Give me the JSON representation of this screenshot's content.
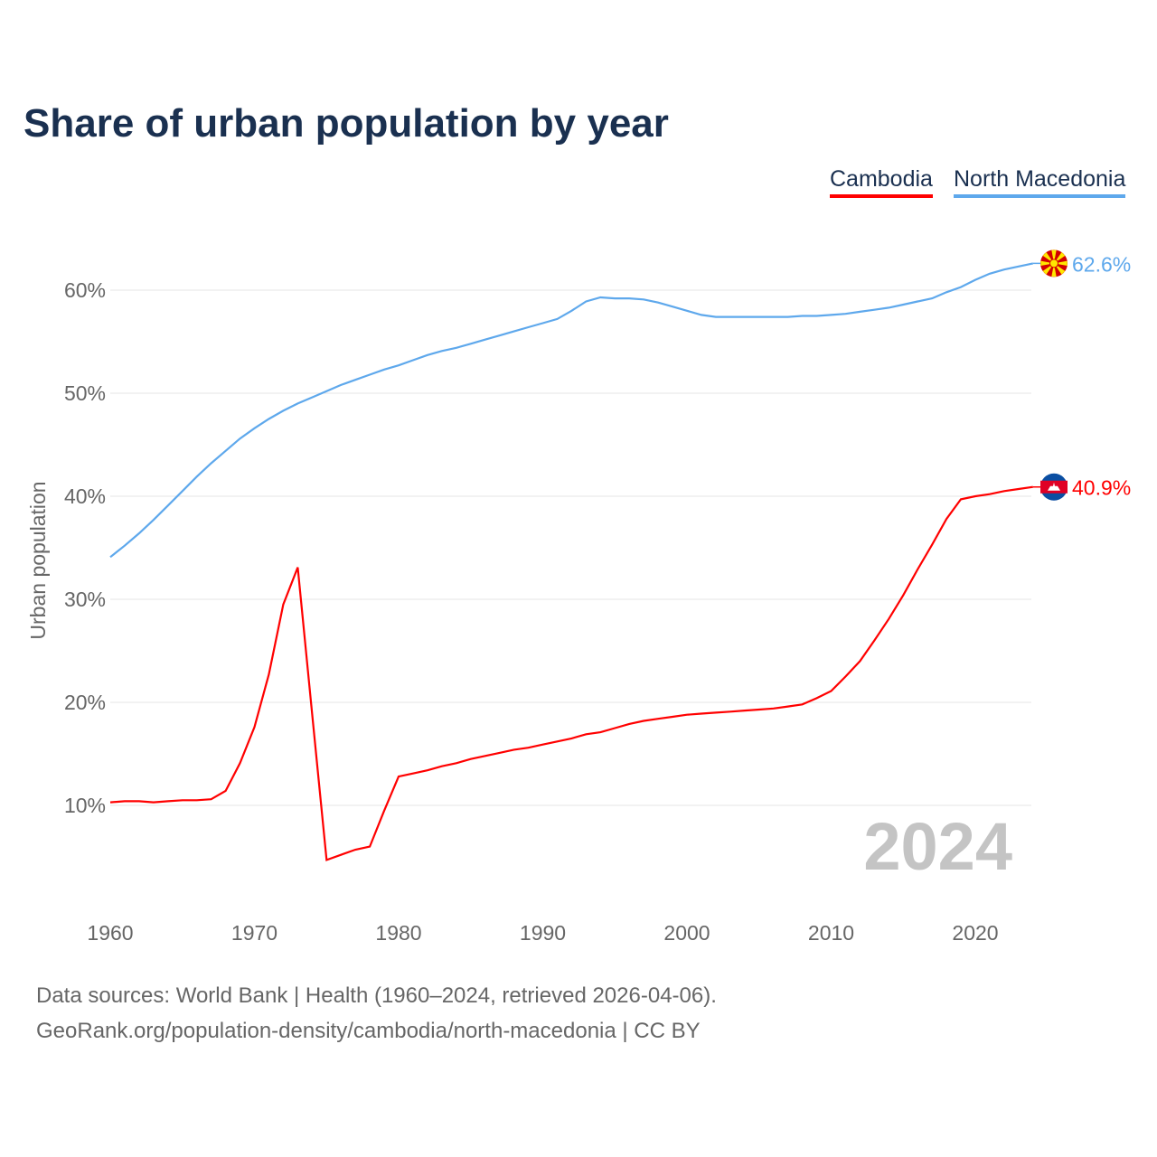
{
  "chart_data": {
    "type": "line",
    "title": "Share of urban population by year",
    "xlabel": "",
    "ylabel": "Urban population",
    "xlim": [
      1960,
      2024
    ],
    "ylim": [
      0,
      65
    ],
    "yticks": [
      10,
      20,
      30,
      40,
      50,
      60
    ],
    "ytick_labels": [
      "10%",
      "20%",
      "30%",
      "40%",
      "50%",
      "60%"
    ],
    "xticks": [
      1960,
      1970,
      1980,
      1990,
      2000,
      2010,
      2020
    ],
    "xtick_labels": [
      "1960",
      "1970",
      "1980",
      "1990",
      "2000",
      "2010",
      "2020"
    ],
    "grid": true,
    "legend_position": "top-right",
    "year_watermark": "2024",
    "series": [
      {
        "name": "Cambodia",
        "color": "#ff0000",
        "end_label": "40.9%",
        "flag": "cambodia-flag-icon",
        "points": [
          [
            1960,
            10.3
          ],
          [
            1961,
            10.4
          ],
          [
            1962,
            10.4
          ],
          [
            1963,
            10.3
          ],
          [
            1964,
            10.4
          ],
          [
            1965,
            10.5
          ],
          [
            1966,
            10.5
          ],
          [
            1967,
            10.6
          ],
          [
            1968,
            11.4
          ],
          [
            1969,
            14.1
          ],
          [
            1970,
            17.6
          ],
          [
            1971,
            22.7
          ],
          [
            1972,
            29.5
          ],
          [
            1973,
            33.1
          ],
          [
            1974,
            18.9
          ],
          [
            1975,
            4.7
          ],
          [
            1976,
            5.2
          ],
          [
            1977,
            5.7
          ],
          [
            1978,
            6.0
          ],
          [
            1979,
            9.5
          ],
          [
            1980,
            12.8
          ],
          [
            1981,
            13.1
          ],
          [
            1982,
            13.4
          ],
          [
            1983,
            13.8
          ],
          [
            1984,
            14.1
          ],
          [
            1985,
            14.5
          ],
          [
            1986,
            14.8
          ],
          [
            1987,
            15.1
          ],
          [
            1988,
            15.4
          ],
          [
            1989,
            15.6
          ],
          [
            1990,
            15.9
          ],
          [
            1991,
            16.2
          ],
          [
            1992,
            16.5
          ],
          [
            1993,
            16.9
          ],
          [
            1994,
            17.1
          ],
          [
            1995,
            17.5
          ],
          [
            1996,
            17.9
          ],
          [
            1997,
            18.2
          ],
          [
            1998,
            18.4
          ],
          [
            1999,
            18.6
          ],
          [
            2000,
            18.8
          ],
          [
            2001,
            18.9
          ],
          [
            2002,
            19.0
          ],
          [
            2003,
            19.1
          ],
          [
            2004,
            19.2
          ],
          [
            2005,
            19.3
          ],
          [
            2006,
            19.4
          ],
          [
            2007,
            19.6
          ],
          [
            2008,
            19.8
          ],
          [
            2009,
            20.4
          ],
          [
            2010,
            21.1
          ],
          [
            2011,
            22.5
          ],
          [
            2012,
            24.0
          ],
          [
            2013,
            26.0
          ],
          [
            2014,
            28.1
          ],
          [
            2015,
            30.4
          ],
          [
            2016,
            32.9
          ],
          [
            2017,
            35.3
          ],
          [
            2018,
            37.8
          ],
          [
            2019,
            39.7
          ],
          [
            2020,
            40.0
          ],
          [
            2021,
            40.2
          ],
          [
            2022,
            40.5
          ],
          [
            2023,
            40.7
          ],
          [
            2024,
            40.9
          ]
        ]
      },
      {
        "name": "North Macedonia",
        "color": "#5ea8ec",
        "end_label": "62.6%",
        "flag": "north-macedonia-flag-icon",
        "points": [
          [
            1960,
            34.1
          ],
          [
            1961,
            35.2
          ],
          [
            1962,
            36.4
          ],
          [
            1963,
            37.7
          ],
          [
            1964,
            39.1
          ],
          [
            1965,
            40.5
          ],
          [
            1966,
            41.9
          ],
          [
            1967,
            43.2
          ],
          [
            1968,
            44.4
          ],
          [
            1969,
            45.6
          ],
          [
            1970,
            46.6
          ],
          [
            1971,
            47.5
          ],
          [
            1972,
            48.3
          ],
          [
            1973,
            49.0
          ],
          [
            1974,
            49.6
          ],
          [
            1975,
            50.2
          ],
          [
            1976,
            50.8
          ],
          [
            1977,
            51.3
          ],
          [
            1978,
            51.8
          ],
          [
            1979,
            52.3
          ],
          [
            1980,
            52.7
          ],
          [
            1981,
            53.2
          ],
          [
            1982,
            53.7
          ],
          [
            1983,
            54.1
          ],
          [
            1984,
            54.4
          ],
          [
            1985,
            54.8
          ],
          [
            1986,
            55.2
          ],
          [
            1987,
            55.6
          ],
          [
            1988,
            56.0
          ],
          [
            1989,
            56.4
          ],
          [
            1990,
            56.8
          ],
          [
            1991,
            57.2
          ],
          [
            1992,
            58.0
          ],
          [
            1993,
            58.9
          ],
          [
            1994,
            59.3
          ],
          [
            1995,
            59.2
          ],
          [
            1996,
            59.2
          ],
          [
            1997,
            59.1
          ],
          [
            1998,
            58.8
          ],
          [
            1999,
            58.4
          ],
          [
            2000,
            58.0
          ],
          [
            2001,
            57.6
          ],
          [
            2002,
            57.4
          ],
          [
            2003,
            57.4
          ],
          [
            2004,
            57.4
          ],
          [
            2005,
            57.4
          ],
          [
            2006,
            57.4
          ],
          [
            2007,
            57.4
          ],
          [
            2008,
            57.5
          ],
          [
            2009,
            57.5
          ],
          [
            2010,
            57.6
          ],
          [
            2011,
            57.7
          ],
          [
            2012,
            57.9
          ],
          [
            2013,
            58.1
          ],
          [
            2014,
            58.3
          ],
          [
            2015,
            58.6
          ],
          [
            2016,
            58.9
          ],
          [
            2017,
            59.2
          ],
          [
            2018,
            59.8
          ],
          [
            2019,
            60.3
          ],
          [
            2020,
            61.0
          ],
          [
            2021,
            61.6
          ],
          [
            2022,
            62.0
          ],
          [
            2023,
            62.3
          ],
          [
            2024,
            62.6
          ]
        ]
      }
    ]
  },
  "footer": {
    "line1": "Data sources: World Bank | Health (1960–2024, retrieved 2026-04-06).",
    "line2": "GeoRank.org/population-density/cambodia/north-macedonia | CC BY"
  }
}
